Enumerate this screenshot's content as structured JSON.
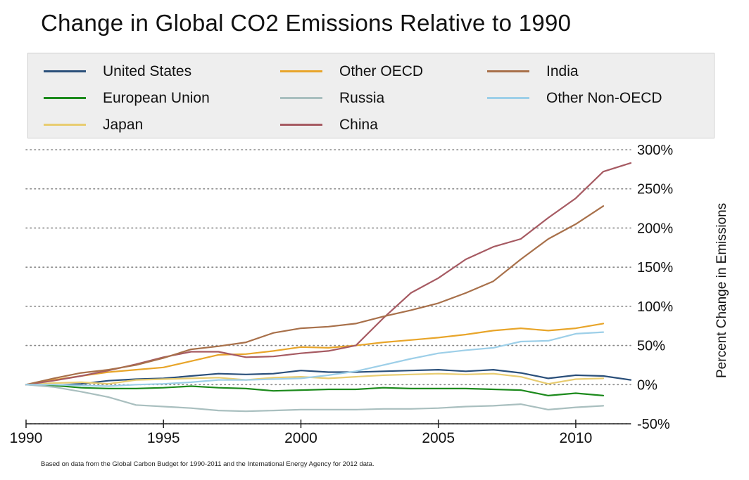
{
  "chart_data": {
    "type": "line",
    "title": "Change in Global CO2 Emissions Relative to 1990",
    "xlabel": "",
    "ylabel": "Percent Change in Emissions",
    "xlim": [
      1990,
      2012
    ],
    "ylim": [
      -50,
      300
    ],
    "x_ticks": [
      "1990",
      "1995",
      "2000",
      "2005",
      "2010"
    ],
    "x_tick_values": [
      1990,
      1995,
      2000,
      2005,
      2010
    ],
    "y_ticks": [
      "-50%",
      "0%",
      "50%",
      "100%",
      "150%",
      "200%",
      "250%",
      "300%"
    ],
    "y_tick_values": [
      -50,
      0,
      50,
      100,
      150,
      200,
      250,
      300
    ],
    "grid": "horizontal dotted",
    "legend_position": "top",
    "footnote": "Based on data from the Global Carbon Budget for 1990-2011 and the International Energy Agency for 2012 data.",
    "series": [
      {
        "name": "United States",
        "color": "#2a4f7a",
        "x": [
          1990,
          1991,
          1992,
          1993,
          1994,
          1995,
          1996,
          1997,
          1998,
          1999,
          2000,
          2001,
          2002,
          2003,
          2004,
          2005,
          2006,
          2007,
          2008,
          2009,
          2010,
          2011,
          2012
        ],
        "values": [
          0,
          -1,
          1,
          5,
          7,
          8,
          11,
          14,
          13,
          14,
          18,
          16,
          16,
          17,
          18,
          19,
          17,
          19,
          15,
          8,
          12,
          11,
          6
        ]
      },
      {
        "name": "European Union",
        "color": "#1c8a1c",
        "x": [
          1990,
          1991,
          1992,
          1993,
          1994,
          1995,
          1996,
          1997,
          1998,
          1999,
          2000,
          2001,
          2002,
          2003,
          2004,
          2005,
          2006,
          2007,
          2008,
          2009,
          2010,
          2011
        ],
        "values": [
          0,
          -1,
          -4,
          -5,
          -5,
          -4,
          -2,
          -4,
          -5,
          -8,
          -7,
          -6,
          -6,
          -4,
          -5,
          -5,
          -5,
          -6,
          -7,
          -14,
          -11,
          -14
        ]
      },
      {
        "name": "Japan",
        "color": "#e8cc70",
        "x": [
          1990,
          1991,
          1992,
          1993,
          1994,
          1995,
          1996,
          1997,
          1998,
          1999,
          2000,
          2001,
          2002,
          2003,
          2004,
          2005,
          2006,
          2007,
          2008,
          2009,
          2010,
          2011
        ],
        "values": [
          0,
          2,
          3,
          1,
          6,
          7,
          8,
          9,
          6,
          9,
          10,
          8,
          10,
          12,
          13,
          14,
          13,
          14,
          10,
          1,
          7,
          8
        ]
      },
      {
        "name": "Other OECD",
        "color": "#e8a52a",
        "x": [
          1990,
          1991,
          1992,
          1993,
          1994,
          1995,
          1996,
          1997,
          1998,
          1999,
          2000,
          2001,
          2002,
          2003,
          2004,
          2005,
          2006,
          2007,
          2008,
          2009,
          2010,
          2011
        ],
        "values": [
          0,
          6,
          11,
          16,
          19,
          22,
          30,
          38,
          39,
          43,
          48,
          47,
          50,
          54,
          57,
          60,
          64,
          69,
          72,
          69,
          72,
          78
        ]
      },
      {
        "name": "Russia",
        "color": "#a9bfbf",
        "x": [
          1990,
          1991,
          1992,
          1993,
          1994,
          1995,
          1996,
          1997,
          1998,
          1999,
          2000,
          2001,
          2002,
          2003,
          2004,
          2005,
          2006,
          2007,
          2008,
          2009,
          2010,
          2011
        ],
        "values": [
          0,
          -3,
          -9,
          -16,
          -26,
          -28,
          -30,
          -33,
          -34,
          -33,
          -32,
          -32,
          -32,
          -31,
          -31,
          -30,
          -28,
          -27,
          -25,
          -32,
          -29,
          -27
        ]
      },
      {
        "name": "China",
        "color": "#a65a62",
        "x": [
          1990,
          1991,
          1992,
          1993,
          1994,
          1995,
          1996,
          1997,
          1998,
          1999,
          2000,
          2001,
          2002,
          2003,
          2004,
          2005,
          2006,
          2007,
          2008,
          2009,
          2010,
          2011,
          2012
        ],
        "values": [
          0,
          5,
          11,
          18,
          26,
          35,
          42,
          42,
          35,
          36,
          40,
          43,
          50,
          85,
          117,
          136,
          160,
          176,
          186,
          213,
          238,
          272,
          283
        ]
      },
      {
        "name": "India",
        "color": "#a8704a",
        "x": [
          1990,
          1991,
          1992,
          1993,
          1994,
          1995,
          1996,
          1997,
          1998,
          1999,
          2000,
          2001,
          2002,
          2003,
          2004,
          2005,
          2006,
          2007,
          2008,
          2009,
          2010,
          2011
        ],
        "values": [
          0,
          8,
          15,
          19,
          25,
          34,
          45,
          49,
          54,
          66,
          72,
          74,
          78,
          87,
          95,
          104,
          117,
          132,
          160,
          186,
          205,
          228
        ]
      },
      {
        "name": "Other Non-OECD",
        "color": "#9dcfe8",
        "x": [
          1990,
          1991,
          1992,
          1993,
          1994,
          1995,
          1996,
          1997,
          1998,
          1999,
          2000,
          2001,
          2002,
          2003,
          2004,
          2005,
          2006,
          2007,
          2008,
          2009,
          2010,
          2011
        ],
        "values": [
          0,
          0,
          -1,
          -2,
          0,
          1,
          3,
          6,
          6,
          7,
          8,
          12,
          17,
          25,
          33,
          40,
          44,
          47,
          55,
          56,
          65,
          67
        ]
      }
    ]
  },
  "legend": {
    "items": [
      {
        "label": "United States",
        "color": "#2a4f7a"
      },
      {
        "label": "European Union",
        "color": "#1c8a1c"
      },
      {
        "label": "Japan",
        "color": "#e8cc70"
      },
      {
        "label": "Other OECD",
        "color": "#e8a52a"
      },
      {
        "label": "Russia",
        "color": "#a9bfbf"
      },
      {
        "label": "China",
        "color": "#a65a62"
      },
      {
        "label": "India",
        "color": "#a8704a"
      },
      {
        "label": "Other Non-OECD",
        "color": "#9dcfe8"
      }
    ]
  }
}
